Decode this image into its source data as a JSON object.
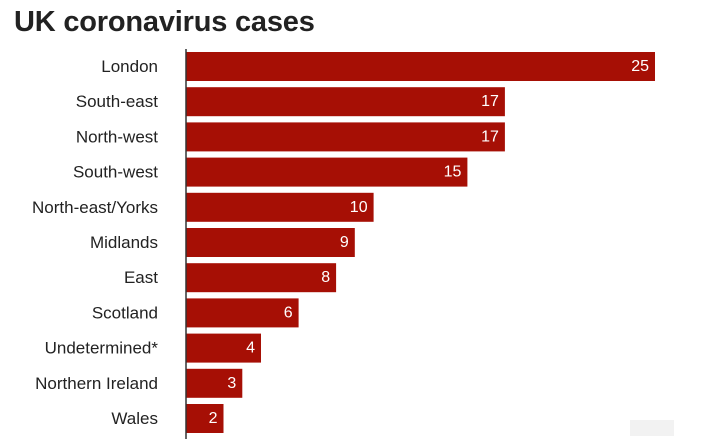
{
  "chart_data": {
    "type": "bar",
    "orientation": "horizontal",
    "title": "UK coronavirus cases",
    "categories": [
      "London",
      "South-east",
      "North-west",
      "South-west",
      "North-east/Yorks",
      "Midlands",
      "East",
      "Scotland",
      "Undetermined*",
      "Northern Ireland",
      "Wales"
    ],
    "values": [
      25,
      17,
      17,
      15,
      10,
      9,
      8,
      6,
      4,
      3,
      2
    ],
    "xlim": [
      0,
      25
    ],
    "grid": false,
    "legend": "none",
    "bar_color": "#a60f05",
    "value_label_color": "#ffffff"
  }
}
